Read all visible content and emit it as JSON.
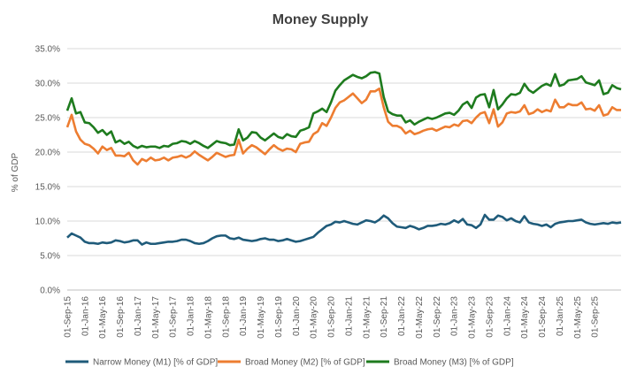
{
  "chart_data": {
    "type": "line",
    "title": "Money Supply",
    "xlabel": "",
    "ylabel": "% of GDP",
    "ylim": [
      0,
      35
    ],
    "y_ticks": [
      "0.0%",
      "5.0%",
      "10.0%",
      "15.0%",
      "20.0%",
      "25.0%",
      "30.0%",
      "35.0%"
    ],
    "y_tick_values": [
      0,
      5,
      10,
      15,
      20,
      25,
      30,
      35
    ],
    "x_tick_labels": [
      "01-Sep-15",
      "01-Jan-16",
      "01-May-16",
      "01-Sep-16",
      "01-Jan-17",
      "01-May-17",
      "01-Sep-17",
      "01-Jan-18",
      "01-May-18",
      "01-Sep-18",
      "01-Jan-19",
      "01-May-19",
      "01-Sep-19",
      "01-Jan-20",
      "01-May-20",
      "01-Sep-20",
      "01-Jan-21",
      "01-May-21",
      "01-Sep-21",
      "01-Jan-22",
      "01-May-22",
      "01-Sep-22",
      "01-Jan-23",
      "01-May-23",
      "01-Sep-23",
      "01-Jan-24",
      "01-May-24",
      "01-Sep-24",
      "01-Jan-25",
      "01-May-25",
      "01-Sep-25"
    ],
    "grid": "horizontal",
    "legend_position": "bottom",
    "series": [
      {
        "name": "Narrow Money (M1) [% of GDP]",
        "color": "#1f5b7a",
        "values": [
          7.6,
          8.2,
          7.9,
          7.6,
          7.0,
          6.8,
          6.8,
          6.7,
          6.9,
          6.8,
          6.9,
          7.2,
          7.1,
          6.9,
          7.0,
          7.2,
          7.2,
          6.6,
          6.9,
          6.7,
          6.7,
          6.8,
          6.9,
          7.0,
          7.0,
          7.1,
          7.3,
          7.3,
          7.1,
          6.8,
          6.7,
          6.8,
          7.1,
          7.5,
          7.8,
          7.9,
          7.9,
          7.5,
          7.4,
          7.6,
          7.3,
          7.2,
          7.1,
          7.2,
          7.4,
          7.5,
          7.3,
          7.3,
          7.1,
          7.2,
          7.4,
          7.2,
          7.0,
          7.1,
          7.3,
          7.5,
          7.7,
          8.3,
          8.8,
          9.3,
          9.5,
          9.9,
          9.8,
          10.0,
          9.8,
          9.6,
          9.5,
          9.8,
          10.1,
          10.0,
          9.8,
          10.2,
          10.8,
          10.4,
          9.7,
          9.2,
          9.1,
          9.0,
          9.3,
          9.1,
          8.8,
          9.0,
          9.3,
          9.3,
          9.4,
          9.6,
          9.5,
          9.7,
          10.1,
          9.8,
          10.3,
          9.5,
          9.4,
          9.0,
          9.5,
          10.9,
          10.2,
          10.2,
          10.8,
          10.6,
          10.1,
          10.4,
          10.0,
          9.8,
          10.7,
          9.8,
          9.6,
          9.5,
          9.3,
          9.5,
          9.1,
          9.6,
          9.8,
          9.9,
          10.0,
          10.0,
          10.1,
          10.2,
          9.8,
          9.6,
          9.5,
          9.6,
          9.7,
          9.6,
          9.8,
          9.7,
          9.8
        ]
      },
      {
        "name": "Broad Money (M2) [% of GDP]",
        "color": "#ed7d31",
        "values": [
          23.6,
          25.4,
          23.0,
          21.8,
          21.2,
          21.0,
          20.5,
          19.8,
          20.8,
          20.3,
          20.6,
          19.5,
          19.5,
          19.4,
          19.9,
          18.8,
          18.2,
          19.0,
          18.7,
          19.2,
          18.8,
          18.9,
          19.2,
          18.8,
          19.2,
          19.3,
          19.5,
          19.2,
          19.5,
          20.1,
          19.6,
          19.2,
          18.8,
          19.3,
          19.9,
          19.6,
          19.3,
          19.5,
          19.6,
          21.8,
          19.8,
          20.5,
          21.0,
          20.7,
          20.2,
          19.7,
          20.4,
          21.0,
          20.5,
          20.2,
          20.5,
          20.4,
          20.0,
          21.2,
          21.4,
          21.5,
          22.6,
          23.0,
          24.2,
          23.8,
          25.0,
          26.4,
          27.2,
          27.5,
          28.0,
          28.5,
          27.8,
          27.1,
          27.6,
          28.8,
          28.8,
          29.2,
          26.5,
          24.4,
          23.8,
          23.8,
          23.5,
          22.7,
          23.1,
          22.6,
          22.8,
          23.1,
          23.3,
          23.4,
          23.1,
          23.4,
          23.7,
          23.6,
          24.0,
          23.8,
          24.5,
          24.6,
          24.2,
          25.0,
          25.6,
          25.8,
          24.2,
          26.2,
          23.7,
          24.3,
          25.6,
          25.8,
          25.7,
          25.9,
          26.8,
          25.5,
          25.7,
          26.2,
          25.8,
          26.1,
          25.9,
          27.6,
          26.5,
          26.5,
          27.0,
          26.8,
          26.8,
          27.2,
          26.2,
          26.3,
          26.0,
          26.8,
          25.3,
          25.5,
          26.5,
          26.1,
          26.1
        ]
      },
      {
        "name": "Broad Money (M3) [% of GDP]",
        "color": "#1e7b1e",
        "values": [
          26.0,
          27.8,
          25.6,
          25.8,
          24.3,
          24.2,
          23.6,
          22.8,
          23.2,
          22.5,
          23.0,
          21.4,
          21.7,
          21.2,
          21.5,
          20.9,
          20.6,
          20.9,
          20.7,
          20.8,
          20.8,
          20.6,
          20.9,
          20.8,
          21.2,
          21.3,
          21.6,
          21.5,
          21.2,
          21.6,
          21.3,
          20.9,
          20.6,
          21.1,
          21.6,
          21.4,
          21.3,
          21.0,
          21.1,
          23.3,
          21.7,
          22.1,
          22.9,
          22.8,
          22.1,
          21.7,
          22.2,
          22.7,
          22.2,
          22.0,
          22.6,
          22.3,
          22.2,
          23.1,
          23.3,
          23.6,
          25.6,
          25.9,
          26.3,
          25.8,
          27.2,
          28.9,
          29.7,
          30.4,
          30.8,
          31.2,
          30.9,
          30.7,
          31.0,
          31.5,
          31.6,
          31.4,
          28.0,
          25.9,
          25.5,
          25.3,
          25.3,
          24.3,
          24.6,
          24.0,
          24.4,
          24.7,
          25.0,
          24.8,
          25.0,
          25.3,
          25.6,
          25.7,
          25.4,
          26.0,
          26.9,
          27.3,
          26.4,
          27.9,
          28.3,
          28.4,
          26.5,
          29.0,
          26.2,
          26.9,
          27.8,
          28.4,
          28.3,
          28.6,
          29.9,
          29.0,
          28.6,
          29.1,
          29.6,
          29.9,
          29.6,
          31.3,
          29.6,
          29.8,
          30.4,
          30.5,
          30.6,
          31.0,
          30.1,
          29.9,
          29.7,
          30.4,
          28.4,
          28.6,
          29.7,
          29.3,
          29.1
        ]
      }
    ]
  }
}
